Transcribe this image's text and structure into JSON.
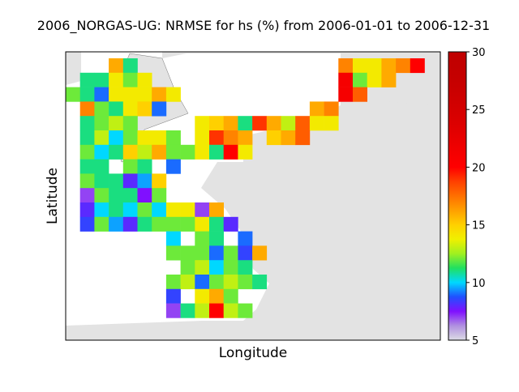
{
  "chart_data": {
    "type": "heatmap",
    "title": "2006_NORGAS-UG: NRMSE for hs (%) from 2006-01-01 to 2006-12-31",
    "xlabel": "Longitude",
    "ylabel": "Latitude",
    "values": [
      [
        null,
        null,
        null,
        16,
        11,
        null,
        null,
        null,
        null,
        null,
        null,
        null,
        null,
        null,
        null,
        null,
        null,
        null,
        null,
        17,
        14,
        14,
        16,
        17,
        20
      ],
      [
        null,
        11,
        11,
        14,
        12,
        14,
        null,
        null,
        null,
        null,
        null,
        null,
        null,
        null,
        null,
        null,
        null,
        null,
        null,
        21,
        12,
        14,
        16,
        null,
        null
      ],
      [
        12,
        11,
        9,
        14,
        14,
        14,
        16,
        14,
        null,
        null,
        null,
        null,
        null,
        null,
        null,
        null,
        null,
        null,
        null,
        21,
        18,
        null,
        null,
        null,
        null
      ],
      [
        null,
        17,
        12,
        11,
        14,
        15,
        9,
        null,
        null,
        null,
        null,
        null,
        null,
        null,
        null,
        null,
        null,
        16,
        17,
        null,
        null,
        null,
        null,
        null,
        null
      ],
      [
        null,
        11,
        12,
        13,
        12,
        null,
        null,
        null,
        null,
        14,
        15,
        16,
        11,
        19,
        16,
        13,
        18,
        14,
        14,
        null,
        null,
        null,
        null,
        null,
        null
      ],
      [
        null,
        11,
        13,
        10,
        12,
        14,
        14,
        12,
        null,
        14,
        19,
        17,
        16,
        null,
        15,
        16,
        18,
        null,
        null,
        null,
        null,
        null,
        null,
        null,
        null
      ],
      [
        null,
        12,
        10,
        11,
        15,
        13,
        16,
        12,
        12,
        14,
        11,
        20,
        14,
        null,
        null,
        null,
        null,
        null,
        null,
        null,
        null,
        null,
        null,
        null,
        null
      ],
      [
        null,
        11,
        11,
        null,
        12,
        11,
        null,
        9,
        null,
        null,
        null,
        null,
        null,
        null,
        null,
        null,
        null,
        null,
        null,
        null,
        null,
        null,
        null,
        null,
        null
      ],
      [
        null,
        12,
        11,
        11,
        8,
        9.5,
        15,
        null,
        null,
        null,
        null,
        null,
        null,
        null,
        null,
        null,
        null,
        null,
        null,
        null,
        null,
        null,
        null,
        null,
        null
      ],
      [
        null,
        7,
        12,
        11,
        11,
        7.5,
        12,
        null,
        null,
        null,
        null,
        null,
        null,
        null,
        null,
        null,
        null,
        null,
        null,
        null,
        null,
        null,
        null,
        null,
        null
      ],
      [
        null,
        8,
        10,
        11,
        10,
        12,
        10,
        14,
        14,
        7,
        16,
        null,
        null,
        null,
        null,
        null,
        null,
        null,
        null,
        null,
        null,
        null,
        null,
        null,
        null
      ],
      [
        null,
        8.5,
        12,
        9.5,
        8,
        11,
        12,
        12,
        12,
        14,
        11,
        8,
        null,
        null,
        null,
        null,
        null,
        null,
        null,
        null,
        null,
        null,
        null,
        null,
        null
      ],
      [
        null,
        null,
        null,
        null,
        null,
        null,
        null,
        10,
        null,
        12,
        11,
        null,
        9,
        null,
        null,
        null,
        null,
        null,
        null,
        null,
        null,
        null,
        null,
        null,
        null
      ],
      [
        null,
        null,
        null,
        null,
        null,
        null,
        null,
        12,
        12,
        12,
        9,
        12,
        8.5,
        16,
        null,
        null,
        null,
        null,
        null,
        null,
        null,
        null,
        null,
        null,
        null
      ],
      [
        null,
        null,
        null,
        null,
        null,
        null,
        null,
        null,
        12,
        13,
        10,
        12,
        11,
        null,
        null,
        null,
        null,
        null,
        null,
        null,
        null,
        null,
        null,
        null,
        null
      ],
      [
        null,
        null,
        null,
        null,
        null,
        null,
        null,
        12,
        13,
        9,
        12,
        13,
        12,
        11,
        null,
        null,
        null,
        null,
        null,
        null,
        null,
        null,
        null,
        null,
        null
      ],
      [
        null,
        null,
        null,
        null,
        null,
        null,
        null,
        8.5,
        null,
        14,
        16,
        12,
        null,
        null,
        null,
        null,
        null,
        null,
        null,
        null,
        null,
        null,
        null,
        null,
        null
      ],
      [
        null,
        null,
        null,
        null,
        null,
        null,
        null,
        7,
        11,
        13,
        20,
        13,
        12,
        null,
        null,
        null,
        null,
        null,
        null,
        null,
        null,
        null,
        null,
        null,
        null
      ]
    ],
    "clim": [
      5,
      30
    ],
    "cticks": [
      5,
      10,
      15,
      20,
      25,
      30
    ],
    "colormap": [
      "#dcdce4",
      "#b090e0",
      "#8010ff",
      "#2050ff",
      "#00d8ff",
      "#20e060",
      "#a0f020",
      "#f0f000",
      "#ffd000",
      "#ffa000",
      "#ff7000",
      "#ff4000",
      "#ff0000",
      "#f40000",
      "#e80000",
      "#dc0000",
      "#d40000",
      "#cc0000",
      "#c60000",
      "#c20000",
      "#c00000"
    ]
  }
}
